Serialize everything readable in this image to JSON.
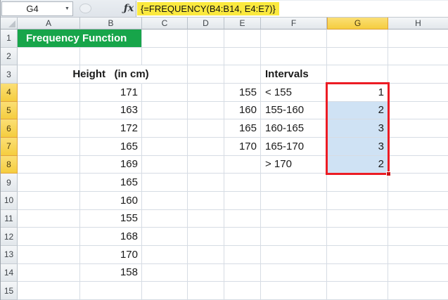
{
  "formula_bar": {
    "name_box": "G4",
    "dropdown_glyph": "▼",
    "fx_label": "ƒx",
    "formula": "{=FREQUENCY(B4:B14, E4:E7)}"
  },
  "columns": [
    "A",
    "B",
    "C",
    "D",
    "E",
    "F",
    "G",
    "H"
  ],
  "row_count": 15,
  "labels": {
    "title": "Frequency Function",
    "height_header": "Height   (in cm)",
    "intervals_header": "Intervals"
  },
  "sheet_data": {
    "heights_range": "B4:B14",
    "heights": [
      171,
      163,
      172,
      165,
      169,
      165,
      160,
      155,
      168,
      170,
      158
    ],
    "bins_range": "E4:E7",
    "bins": [
      155,
      160,
      165,
      170
    ],
    "interval_labels_range": "F4:F8",
    "interval_labels": [
      "< 155",
      "155-160",
      "160-165",
      "165-170",
      "> 170"
    ],
    "frequencies_range": "G4:G8",
    "frequencies": [
      1,
      2,
      3,
      3,
      2
    ]
  },
  "selection": {
    "active_cell": "G4",
    "range": "G4:G8",
    "selected_column": "G",
    "selected_rows_start": 4,
    "selected_rows_end": 8
  },
  "colors": {
    "title_bg": "#17A54A",
    "title_text": "#FFFFFF",
    "selected_header_gold": "#F5CD3F",
    "selection_fill": "#CFE2F4",
    "range_border": "#EC1C24",
    "formula_highlight": "#FBE93F"
  }
}
